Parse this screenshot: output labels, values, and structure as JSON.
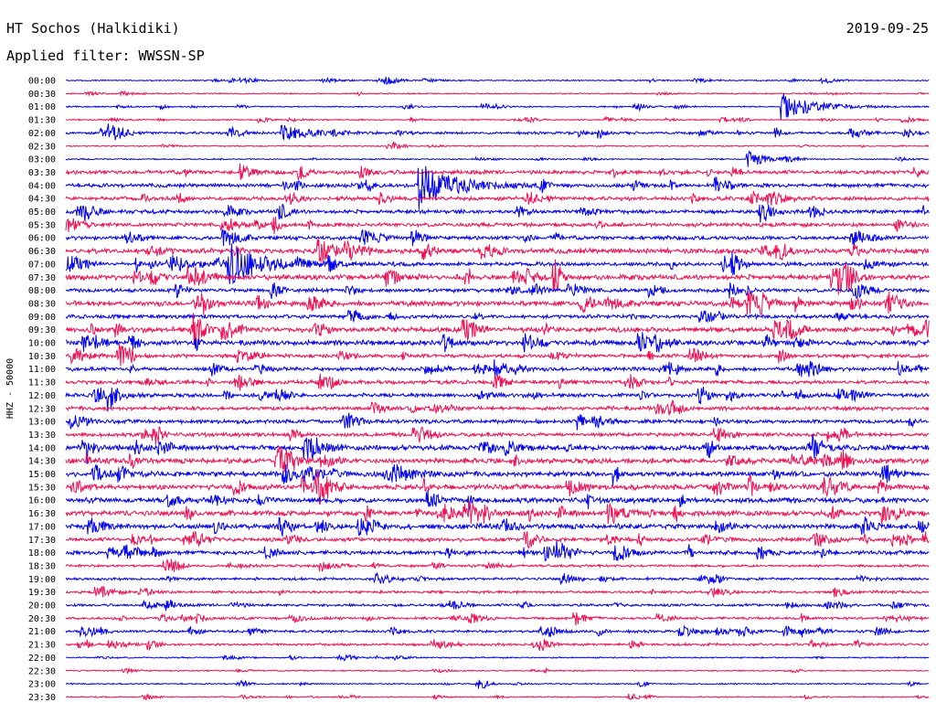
{
  "header": {
    "station": "HT Sochos (Halkidiki)",
    "date": "2019-09-25",
    "filter": "Applied filter: WWSSN-SP"
  },
  "chart_data": {
    "type": "line",
    "title": "HT Sochos (Halkidiki)",
    "subtitle": "Applied filter: WWSSN-SP",
    "date": "2019-09-25",
    "ylabel": "HHZ - 50000",
    "xlabel": "",
    "colors": [
      "#0000ee",
      "#ee1155"
    ],
    "rows": [
      "00:00",
      "00:30",
      "01:00",
      "01:30",
      "02:00",
      "02:30",
      "03:00",
      "03:30",
      "04:00",
      "04:30",
      "05:00",
      "05:30",
      "06:00",
      "06:30",
      "07:00",
      "07:30",
      "08:00",
      "08:30",
      "09:00",
      "09:30",
      "10:00",
      "10:30",
      "11:00",
      "11:30",
      "12:00",
      "12:30",
      "13:00",
      "13:30",
      "14:00",
      "14:30",
      "15:00",
      "15:30",
      "16:00",
      "16:30",
      "17:00",
      "17:30",
      "18:00",
      "18:30",
      "19:00",
      "19:30",
      "20:00",
      "20:30",
      "21:00",
      "21:30",
      "22:00",
      "22:30",
      "23:00",
      "23:30"
    ],
    "noise_level": [
      1,
      1,
      1,
      1,
      2,
      1,
      1,
      3,
      3,
      3,
      3,
      3,
      3,
      4,
      3,
      4,
      3,
      4,
      3,
      4,
      4,
      3,
      3,
      3,
      3,
      3,
      3,
      3,
      4,
      4,
      4,
      4,
      4,
      4,
      4,
      3,
      3,
      2,
      2,
      2,
      2,
      2,
      2,
      2,
      1,
      1,
      1,
      1
    ],
    "events": [
      {
        "row": "01:00",
        "t": 0.83,
        "amp": 14,
        "dur": 0.06
      },
      {
        "row": "02:00",
        "t": 0.25,
        "amp": 8,
        "dur": 0.05
      },
      {
        "row": "03:00",
        "t": 0.79,
        "amp": 10,
        "dur": 0.03
      },
      {
        "row": "03:30",
        "t": 0.34,
        "amp": 6,
        "dur": 0.02
      },
      {
        "row": "04:00",
        "t": 0.41,
        "amp": 26,
        "dur": 0.06
      },
      {
        "row": "05:30",
        "t": 0.22,
        "amp": 5,
        "dur": 0.02
      },
      {
        "row": "07:00",
        "t": 0.19,
        "amp": 20,
        "dur": 0.07
      },
      {
        "row": "07:30",
        "t": 0.38,
        "amp": 5,
        "dur": 0.02
      },
      {
        "row": "08:30",
        "t": 0.77,
        "amp": 6,
        "dur": 0.02
      },
      {
        "row": "12:00",
        "t": 0.05,
        "amp": 5,
        "dur": 0.03
      },
      {
        "row": "14:30",
        "t": 0.88,
        "amp": 7,
        "dur": 0.03
      },
      {
        "row": "15:00",
        "t": 0.38,
        "amp": 6,
        "dur": 0.04
      },
      {
        "row": "16:00",
        "t": 0.42,
        "amp": 9,
        "dur": 0.02
      },
      {
        "row": "17:30",
        "t": 0.74,
        "amp": 5,
        "dur": 0.02
      },
      {
        "row": "18:00",
        "t": 0.05,
        "amp": 6,
        "dur": 0.03
      },
      {
        "row": "20:30",
        "t": 0.59,
        "amp": 8,
        "dur": 0.015
      },
      {
        "row": "21:00",
        "t": 0.55,
        "amp": 5,
        "dur": 0.03
      },
      {
        "row": "23:00",
        "t": 0.48,
        "amp": 7,
        "dur": 0.01
      }
    ]
  }
}
